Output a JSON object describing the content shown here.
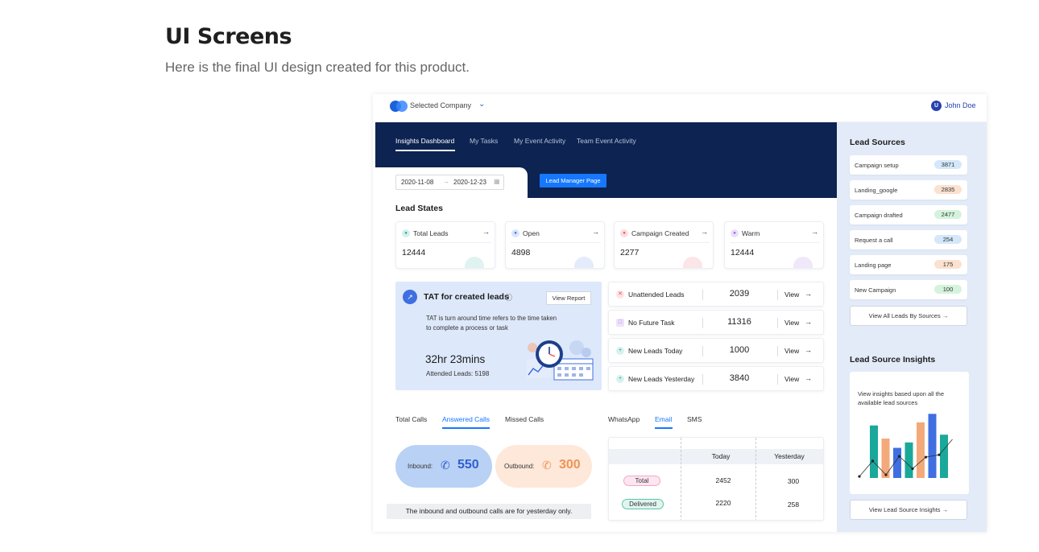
{
  "page": {
    "heading": "UI Screens",
    "subtitle": "Here is the final UI design created for this product."
  },
  "topbar": {
    "company": "Selected Company",
    "user_initial": "U",
    "user_name": "John Doe"
  },
  "tabs": [
    {
      "label": "Insights Dashboard",
      "active": true
    },
    {
      "label": "My Tasks",
      "active": false
    },
    {
      "label": "My Event Activity",
      "active": false
    },
    {
      "label": "Team Event Activity",
      "active": false
    }
  ],
  "filters": {
    "date_from": "2020-11-08",
    "date_to": "2020-12-23",
    "lead_manager_button": "Lead Manager Page"
  },
  "lead_states": {
    "title": "Lead States",
    "cards": [
      {
        "label": "Total Leads",
        "value": "12444",
        "color": "#1aa89a"
      },
      {
        "label": "Open",
        "value": "4898",
        "color": "#3f6fe0"
      },
      {
        "label": "Campaign Created",
        "value": "2277",
        "color": "#e8515e"
      },
      {
        "label": "Warm",
        "value": "12444",
        "color": "#9b59e6"
      }
    ]
  },
  "tat": {
    "title": "TAT for created leads",
    "view_report": "View Report",
    "description": "TAT is turn around time refers to the time taken to complete a process or task",
    "value": "32hr 23mins",
    "attended": "Attended Leads: 5198"
  },
  "lead_list": [
    {
      "label": "Unattended Leads",
      "value": "2039",
      "action": "View",
      "icon": "x-circle-icon",
      "color": "#e8515e"
    },
    {
      "label": "No Future Task",
      "value": "11316",
      "action": "View",
      "icon": "task-icon",
      "color": "#9b59e6"
    },
    {
      "label": "New Leads Today",
      "value": "1000",
      "action": "View",
      "icon": "user-plus-icon",
      "color": "#1aa89a"
    },
    {
      "label": "New Leads Yesterday",
      "value": "3840",
      "action": "View",
      "icon": "user-plus-icon",
      "color": "#1aa89a"
    }
  ],
  "calls": {
    "tabs": [
      {
        "label": "Total Calls",
        "active": false
      },
      {
        "label": "Answered Calls",
        "active": true
      },
      {
        "label": "Missed Calls",
        "active": false
      }
    ],
    "inbound_label": "Inbound:",
    "inbound_value": "550",
    "outbound_label": "Outbound:",
    "outbound_value": "300",
    "note": "The inbound and outbound calls are for yesterday only."
  },
  "messages": {
    "tabs": [
      {
        "label": "WhatsApp",
        "active": false
      },
      {
        "label": "Email",
        "active": true
      },
      {
        "label": "SMS",
        "active": false
      }
    ],
    "columns": [
      "Today",
      "Yesterday"
    ],
    "rows": [
      {
        "label": "Total",
        "today": "2452",
        "yesterday": "300"
      },
      {
        "label": "Delivered",
        "today": "2220",
        "yesterday": "258"
      }
    ]
  },
  "lead_sources": {
    "title": "Lead Sources",
    "items": [
      {
        "label": "Campaign setup",
        "count": "3871",
        "color": "#d4e7fb"
      },
      {
        "label": "Landing_google",
        "count": "2835",
        "color": "#fbe1cf"
      },
      {
        "label": "Campaign drafted",
        "count": "2477",
        "color": "#d5f3dc"
      },
      {
        "label": "Request a call",
        "count": "254",
        "color": "#d4e7fb"
      },
      {
        "label": "Landing page",
        "count": "175",
        "color": "#fbe1cf"
      },
      {
        "label": "New Campaign",
        "count": "100",
        "color": "#d5f3dc"
      }
    ],
    "view_all": "View All Leads By Sources"
  },
  "insights": {
    "title": "Lead Source Insights",
    "description": "View insights based upon all the available lead sources",
    "button": "View Lead Source Insights"
  },
  "chart_data": {
    "type": "bar",
    "bars": [
      {
        "value": 0.68,
        "color": "#1aa89a"
      },
      {
        "value": 0.51,
        "color": "#f4a97a"
      },
      {
        "value": 0.39,
        "color": "#3f6fe0"
      },
      {
        "value": 0.46,
        "color": "#1aa89a"
      },
      {
        "value": 0.72,
        "color": "#f4a97a"
      },
      {
        "value": 0.83,
        "color": "#3f6fe0"
      },
      {
        "value": 0.56,
        "color": "#1aa89a"
      }
    ],
    "line": [
      0.02,
      0.22,
      0.04,
      0.28,
      0.12,
      0.27,
      0.3,
      0.5
    ]
  }
}
